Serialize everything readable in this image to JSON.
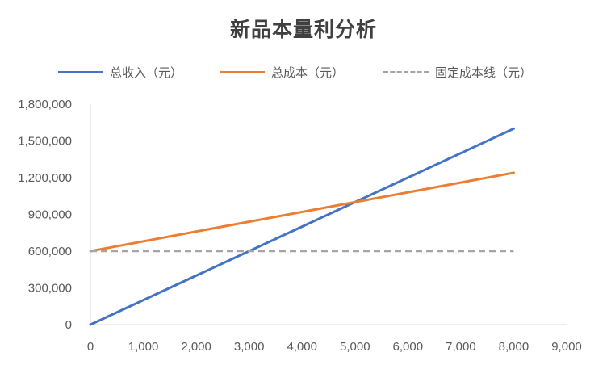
{
  "chart_data": {
    "type": "line",
    "title": "新品本量利分析",
    "xlabel": "",
    "ylabel": "",
    "xlim": [
      0,
      9000
    ],
    "ylim": [
      0,
      1800000
    ],
    "x_ticks": [
      "0",
      "1,000",
      "2,000",
      "3,000",
      "4,000",
      "5,000",
      "6,000",
      "7,000",
      "8,000",
      "9,000"
    ],
    "y_ticks": [
      "0",
      "300,000",
      "600,000",
      "900,000",
      "1,200,000",
      "1,500,000",
      "1,800,000"
    ],
    "x_tick_values": [
      0,
      1000,
      2000,
      3000,
      4000,
      5000,
      6000,
      7000,
      8000,
      9000
    ],
    "y_tick_values": [
      0,
      300000,
      600000,
      900000,
      1200000,
      1500000,
      1800000
    ],
    "grid": false,
    "legend_position": "top",
    "series": [
      {
        "name": "总收入（元）",
        "color": "#4472C4",
        "style": "solid",
        "x": [
          0,
          8000
        ],
        "values": [
          0,
          1600000
        ]
      },
      {
        "name": "总成本（元）",
        "color": "#ED7D31",
        "style": "solid",
        "x": [
          0,
          8000
        ],
        "values": [
          600000,
          1240000
        ]
      },
      {
        "name": "固定成本线（元）",
        "color": "#A5A5A5",
        "style": "dashed",
        "x": [
          0,
          8000
        ],
        "values": [
          600000,
          600000
        ]
      }
    ]
  }
}
